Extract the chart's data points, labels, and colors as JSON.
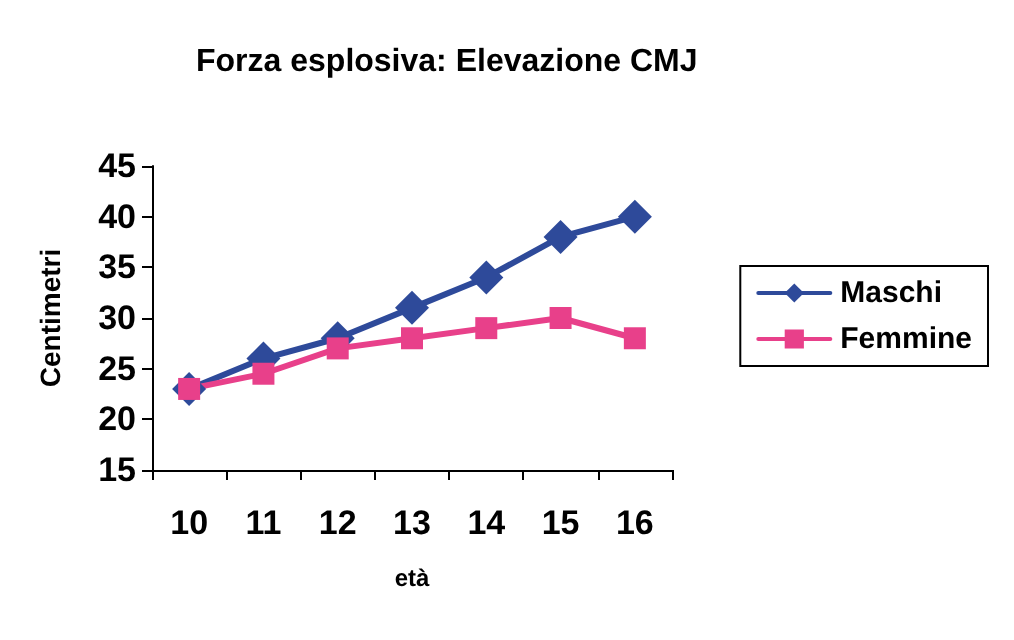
{
  "chart_data": {
    "type": "line",
    "title": "Forza esplosiva: Elevazione CMJ",
    "xlabel": "età",
    "ylabel": "Centimetri",
    "categories": [
      "10",
      "11",
      "12",
      "13",
      "14",
      "15",
      "16"
    ],
    "series": [
      {
        "name": "Maschi",
        "color": "#2e4a9a",
        "marker": "diamond",
        "values": [
          23,
          26,
          28,
          31,
          34,
          38,
          40
        ]
      },
      {
        "name": "Femmine",
        "color": "#e8408a",
        "marker": "square",
        "values": [
          23,
          24.5,
          27,
          28,
          29,
          30,
          28
        ]
      }
    ],
    "ylim": [
      15,
      45
    ],
    "yticks": [
      15,
      20,
      25,
      30,
      35,
      40,
      45
    ],
    "grid": false,
    "legend": "right",
    "line_style": "solid"
  }
}
